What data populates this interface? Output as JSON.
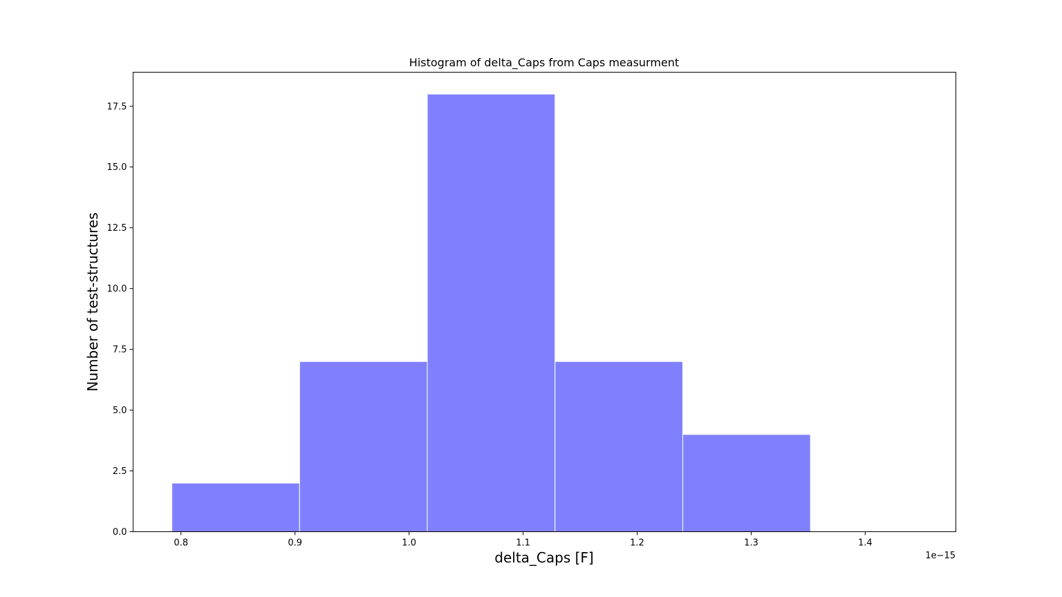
{
  "chart_data": {
    "type": "bar",
    "title": "Histogram of delta_Caps from Caps measurment",
    "xlabel": "delta_Caps [F]",
    "ylabel": "Number of test-structures",
    "x_offset_label": "1e−15",
    "bins": [
      {
        "start": 0.792,
        "end": 0.904,
        "count": 2
      },
      {
        "start": 0.904,
        "end": 1.016,
        "count": 7
      },
      {
        "start": 1.016,
        "end": 1.128,
        "count": 18
      },
      {
        "start": 1.128,
        "end": 1.24,
        "count": 7
      },
      {
        "start": 1.24,
        "end": 1.352,
        "count": 4
      }
    ],
    "xlim": [
      0.758,
      1.4795
    ],
    "ylim": [
      0,
      18.9
    ],
    "xticks": [
      0.8,
      0.9,
      1.0,
      1.1,
      1.2,
      1.3,
      1.4
    ],
    "xtick_labels": [
      "0.8",
      "0.9",
      "1.0",
      "1.1",
      "1.2",
      "1.3",
      "1.4"
    ],
    "yticks": [
      0,
      2.5,
      5,
      7.5,
      10,
      12.5,
      15,
      17.5
    ],
    "ytick_labels": [
      "0.0",
      "2.5",
      "5.0",
      "7.5",
      "10.0",
      "12.5",
      "15.0",
      "17.5"
    ],
    "bar_color": "#8080ff",
    "bar_edge_color": "#ffffff",
    "grid": false
  }
}
